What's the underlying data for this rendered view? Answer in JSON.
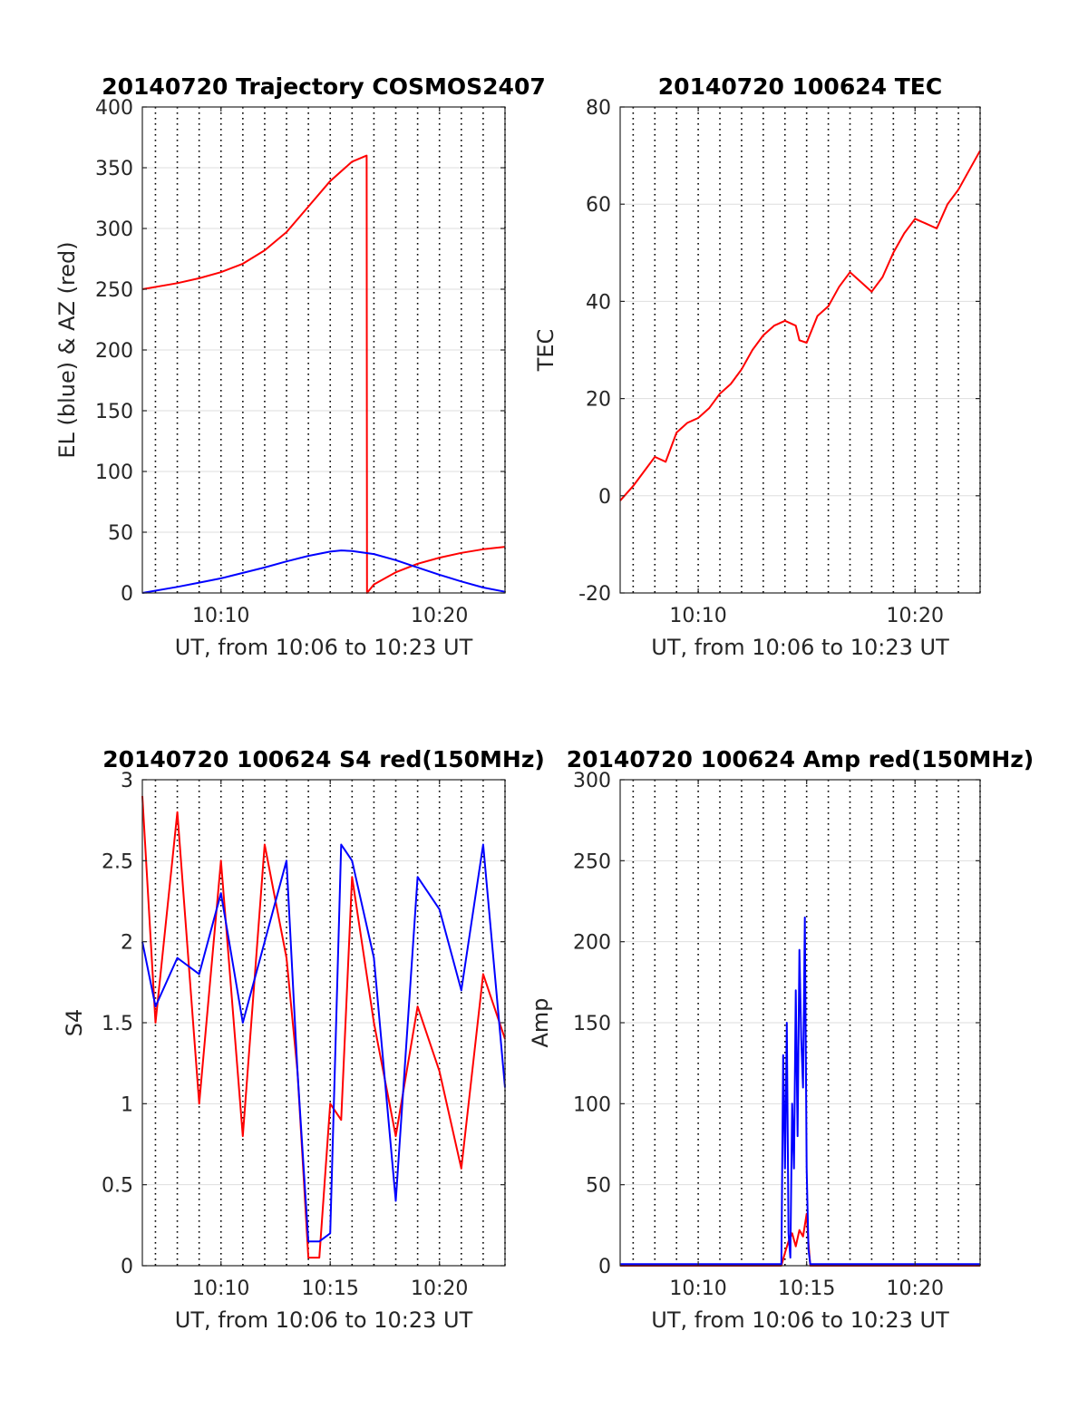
{
  "colors": {
    "red": "#ff0000",
    "blue": "#0000ff",
    "axis": "#262626",
    "grid": "#dedede"
  },
  "chart_data": [
    {
      "id": "trajectory",
      "type": "line",
      "title": "20140720 Trajectory COSMOS2407",
      "xlabel": "UT, from 10:06 to 10:23 UT",
      "ylabel": "EL (blue) & AZ (red)",
      "xlim": [
        "10:06:24",
        "10:23:00"
      ],
      "ylim": [
        0,
        400
      ],
      "yticks": [
        0,
        50,
        100,
        150,
        200,
        250,
        300,
        350,
        400
      ],
      "xticks": [
        "10:10",
        "10:20"
      ],
      "grid": "on",
      "series": [
        {
          "color": "red",
          "x": [
            "10:06:24",
            "10:08",
            "10:09",
            "10:10",
            "10:11",
            "10:12",
            "10:13",
            "10:14",
            "10:15",
            "10:16",
            "10:16:40",
            "10:16:41",
            "10:17",
            "10:18",
            "10:19",
            "10:20",
            "10:21",
            "10:22",
            "10:23"
          ],
          "values": [
            250,
            255,
            259,
            264,
            271,
            282,
            297,
            318,
            339,
            355,
            360,
            0,
            7,
            17,
            24,
            29,
            33,
            36,
            38
          ]
        },
        {
          "color": "blue",
          "x": [
            "10:06:24",
            "10:08",
            "10:09",
            "10:10",
            "10:11",
            "10:12",
            "10:13",
            "10:14",
            "10:15",
            "10:15:30",
            "10:16",
            "10:17",
            "10:18",
            "10:19",
            "10:20",
            "10:21",
            "10:22",
            "10:23"
          ],
          "values": [
            0,
            5,
            8.5,
            12,
            16.5,
            21,
            26,
            30.5,
            34,
            35,
            34.5,
            32,
            27,
            21,
            15,
            9.5,
            4.5,
            1
          ]
        }
      ]
    },
    {
      "id": "tec",
      "type": "line",
      "title": "20140720 100624 TEC",
      "xlabel": "UT, from 10:06 to 10:23 UT",
      "ylabel": "TEC",
      "xlim": [
        "10:06:24",
        "10:23:00"
      ],
      "ylim": [
        -20,
        80
      ],
      "yticks": [
        -20,
        0,
        20,
        40,
        60,
        80
      ],
      "xticks": [
        "10:10",
        "10:20"
      ],
      "grid": "on",
      "series": [
        {
          "color": "red",
          "x": [
            "10:06:24",
            "10:07",
            "10:07:30",
            "10:08",
            "10:08:30",
            "10:09",
            "10:09:30",
            "10:10",
            "10:10:30",
            "10:11",
            "10:11:30",
            "10:12",
            "10:12:30",
            "10:13",
            "10:13:30",
            "10:14",
            "10:14:30",
            "10:14:40",
            "10:15",
            "10:15:30",
            "10:16",
            "10:16:30",
            "10:17",
            "10:17:30",
            "10:18",
            "10:18:30",
            "10:19",
            "10:19:30",
            "10:20",
            "10:20:30",
            "10:21",
            "10:21:30",
            "10:22",
            "10:22:30",
            "10:23"
          ],
          "values": [
            -1,
            2,
            5,
            8,
            7,
            13,
            15,
            16,
            18,
            21,
            23,
            26,
            30,
            33,
            35,
            36,
            35,
            32,
            31.5,
            37,
            39,
            43,
            46,
            44,
            42,
            45,
            50,
            54,
            57,
            56,
            55,
            60,
            63,
            67,
            71
          ]
        }
      ]
    },
    {
      "id": "s4",
      "type": "line",
      "title": "20140720 100624 S4 red(150MHz)",
      "xlabel": "UT, from 10:06 to 10:23 UT",
      "ylabel": "S4",
      "xlim": [
        "10:06:24",
        "10:23:00"
      ],
      "ylim": [
        0,
        3
      ],
      "yticks": [
        0,
        0.5,
        1,
        1.5,
        2,
        2.5,
        3
      ],
      "xticks": [
        "10:10",
        "10:15",
        "10:20"
      ],
      "grid": "on",
      "series": [
        {
          "color": "red",
          "x": [
            "10:06:24",
            "10:07",
            "10:08",
            "10:09",
            "10:10",
            "10:11",
            "10:12",
            "10:13",
            "10:13:30",
            "10:14",
            "10:14:30",
            "10:15",
            "10:15:30",
            "10:16",
            "10:17",
            "10:18",
            "10:19",
            "10:20",
            "10:21",
            "10:22",
            "10:23"
          ],
          "values": [
            2.9,
            1.5,
            2.8,
            1.0,
            2.5,
            0.8,
            2.6,
            1.9,
            1.2,
            0.05,
            0.05,
            1.0,
            0.9,
            2.4,
            1.5,
            0.8,
            1.6,
            1.2,
            0.6,
            1.8,
            1.4
          ]
        },
        {
          "color": "blue",
          "x": [
            "10:06:24",
            "10:07",
            "10:08",
            "10:09",
            "10:10",
            "10:11",
            "10:12",
            "10:13",
            "10:13:30",
            "10:14",
            "10:14:30",
            "10:15",
            "10:15:30",
            "10:16",
            "10:17",
            "10:18",
            "10:19",
            "10:20",
            "10:21",
            "10:22",
            "10:23"
          ],
          "values": [
            2.0,
            1.6,
            1.9,
            1.8,
            2.3,
            1.5,
            2.0,
            2.5,
            1.2,
            0.15,
            0.15,
            0.2,
            2.6,
            2.5,
            1.9,
            0.4,
            2.4,
            2.2,
            1.7,
            2.6,
            1.1
          ]
        }
      ]
    },
    {
      "id": "amp",
      "type": "line",
      "title": "20140720 100624 Amp red(150MHz)",
      "xlabel": "UT, from 10:06 to 10:23 UT",
      "ylabel": "Amp",
      "xlim": [
        "10:06:24",
        "10:23:00"
      ],
      "ylim": [
        0,
        300
      ],
      "yticks": [
        0,
        50,
        100,
        150,
        200,
        250,
        300
      ],
      "xticks": [
        "10:10",
        "10:15",
        "10:20"
      ],
      "grid": "on",
      "series": [
        {
          "color": "red",
          "x": [
            "10:06:24",
            "10:13:50",
            "10:14:00",
            "10:14:10",
            "10:14:20",
            "10:14:30",
            "10:14:40",
            "10:14:50",
            "10:15:00",
            "10:15:05",
            "10:15:10",
            "10:23:00"
          ],
          "values": [
            0,
            0,
            8,
            15,
            20,
            12,
            22,
            18,
            32,
            14,
            0,
            0
          ]
        },
        {
          "color": "blue",
          "x": [
            "10:06:24",
            "10:13:50",
            "10:13:55",
            "10:14:00",
            "10:14:05",
            "10:14:10",
            "10:14:15",
            "10:14:20",
            "10:14:25",
            "10:14:30",
            "10:14:35",
            "10:14:40",
            "10:14:45",
            "10:14:50",
            "10:14:55",
            "10:15:00",
            "10:15:05",
            "10:15:10",
            "10:23:00"
          ],
          "values": [
            1,
            1,
            130,
            60,
            150,
            20,
            5,
            100,
            60,
            170,
            80,
            195,
            140,
            110,
            215,
            60,
            10,
            1,
            1
          ]
        }
      ]
    }
  ]
}
